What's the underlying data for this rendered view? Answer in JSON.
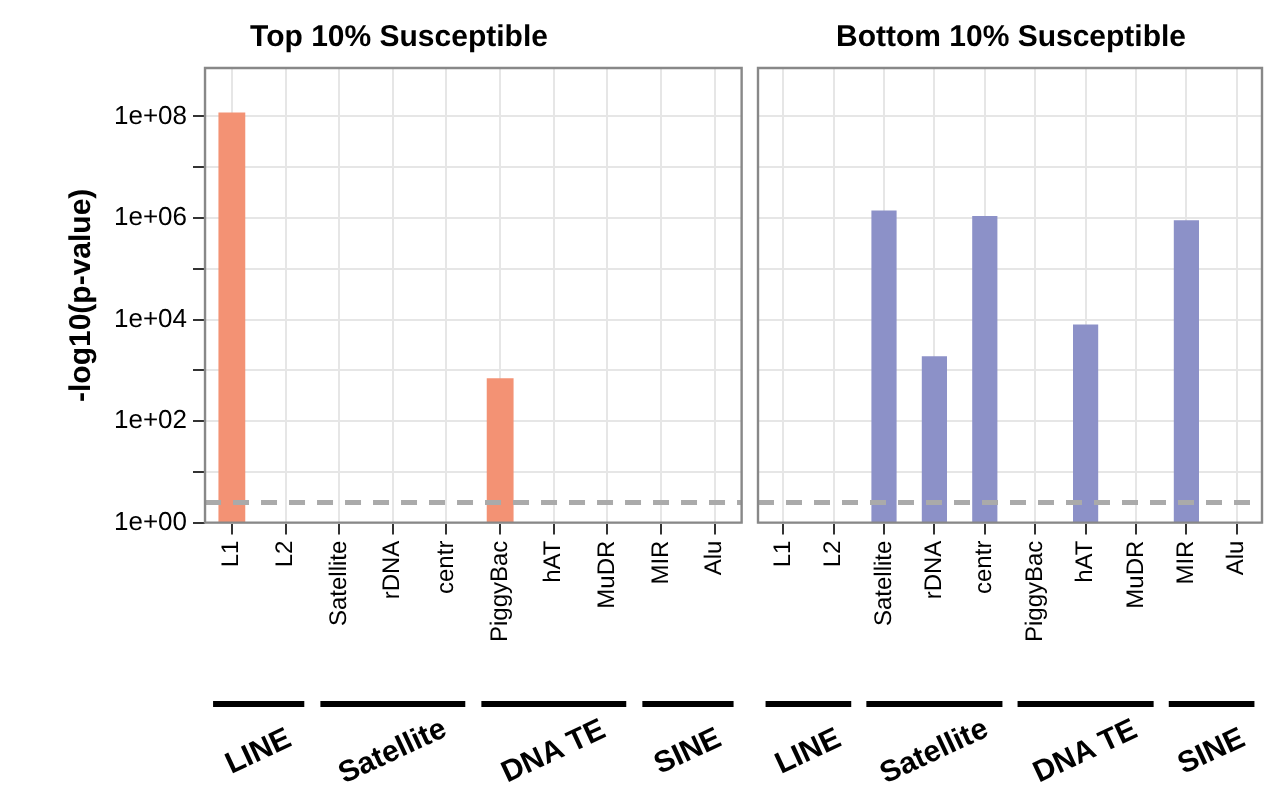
{
  "chart_data": [
    {
      "type": "bar",
      "title": "Top 10% Susceptible",
      "ylabel": "-log10(p-value)",
      "categories": [
        "L1",
        "L2",
        "Satellite",
        "rDNA",
        "centr",
        "PiggyBac",
        "hAT",
        "MuDR",
        "MIR",
        "Alu"
      ],
      "series": [
        {
          "color": "#f39274",
          "values": [
            120000000,
            null,
            null,
            null,
            null,
            700,
            null,
            null,
            null,
            null
          ]
        }
      ],
      "log": "y",
      "ylim": [
        1,
        900000000
      ],
      "yticks": [
        {
          "value": 1,
          "label": "1e+00"
        },
        {
          "value": 10,
          "label": null
        },
        {
          "value": 100,
          "label": "1e+02"
        },
        {
          "value": 1000,
          "label": null
        },
        {
          "value": 10000,
          "label": "1e+04"
        },
        {
          "value": 100000,
          "label": null
        },
        {
          "value": 1000000,
          "label": "1e+06"
        },
        {
          "value": 10000000,
          "label": null
        },
        {
          "value": 100000000,
          "label": "1e+08"
        }
      ],
      "grid": true,
      "legend": false,
      "ref_lines": [
        {
          "axis": "y",
          "value": 2.5,
          "color": "#aaaaaa",
          "line_style": "dashed"
        }
      ],
      "annotations": [
        "LINE",
        "Satellite",
        "DNA TE",
        "SINE"
      ]
    },
    {
      "type": "bar",
      "title": "Bottom 10% Susceptible",
      "categories": [
        "L1",
        "L2",
        "Satellite",
        "rDNA",
        "centr",
        "PiggyBac",
        "hAT",
        "MuDR",
        "MIR",
        "Alu"
      ],
      "series": [
        {
          "color": "#8c91c8",
          "values": [
            null,
            null,
            1400000,
            1900,
            1100000,
            null,
            8000,
            null,
            900000,
            null
          ]
        }
      ],
      "log": "y",
      "ylim": [
        1,
        900000000
      ],
      "yticks": [
        1,
        10,
        100,
        1000,
        10000,
        100000,
        1000000,
        10000000,
        100000000
      ],
      "grid": true,
      "legend": false,
      "tick_labels": "x",
      "ref_lines": [
        {
          "axis": "y",
          "value": 2.5,
          "color": "#aaaaaa",
          "line_style": "dashed"
        }
      ],
      "annotations": [
        "LINE",
        "Satellite",
        "DNA TE",
        "SINE"
      ]
    }
  ]
}
